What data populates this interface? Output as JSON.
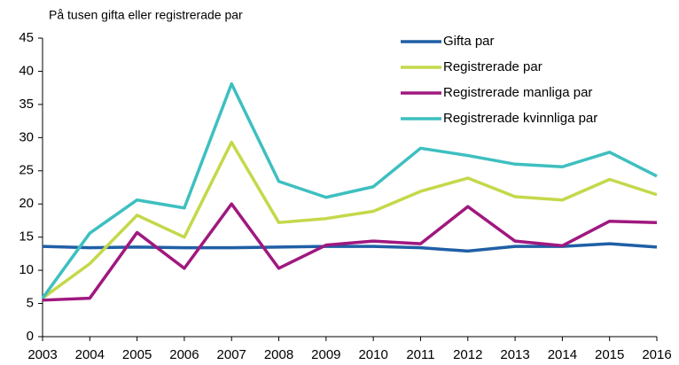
{
  "chart_data": {
    "type": "line",
    "title": "På tusen gifta eller registrerade par",
    "x": [
      2003,
      2004,
      2005,
      2006,
      2007,
      2008,
      2009,
      2010,
      2011,
      2012,
      2013,
      2014,
      2015,
      2016
    ],
    "xlim": [
      2003,
      2016
    ],
    "xticks": [
      2003,
      2004,
      2005,
      2006,
      2007,
      2008,
      2009,
      2010,
      2011,
      2012,
      2013,
      2014,
      2015,
      2016
    ],
    "ylim": [
      0,
      45
    ],
    "yticks": [
      0,
      5,
      10,
      15,
      20,
      25,
      30,
      35,
      40,
      45
    ],
    "legend": "upper right",
    "series": [
      {
        "name": "Gifta par",
        "color": "#1f5fa6",
        "values": [
          13.6,
          13.4,
          13.5,
          13.4,
          13.4,
          13.5,
          13.6,
          13.6,
          13.4,
          12.9,
          13.6,
          13.6,
          14.0,
          13.5
        ]
      },
      {
        "name": "Registrerade par",
        "color": "#c5d84a",
        "values": [
          5.8,
          11.0,
          18.3,
          15.0,
          29.3,
          17.2,
          17.8,
          18.9,
          21.9,
          23.9,
          21.1,
          20.6,
          23.7,
          21.4
        ]
      },
      {
        "name": "Registrerade manliga par",
        "color": "#a0187f",
        "values": [
          5.5,
          5.8,
          15.7,
          10.3,
          20.0,
          10.3,
          13.8,
          14.4,
          14.0,
          19.6,
          14.4,
          13.7,
          17.4,
          17.2
        ]
      },
      {
        "name": "Registrerade kvinnliga par",
        "color": "#3ebfc0",
        "values": [
          5.8,
          15.6,
          20.6,
          19.4,
          38.1,
          23.4,
          21.0,
          22.6,
          28.4,
          27.3,
          26.0,
          25.6,
          27.8,
          24.2
        ]
      }
    ]
  }
}
